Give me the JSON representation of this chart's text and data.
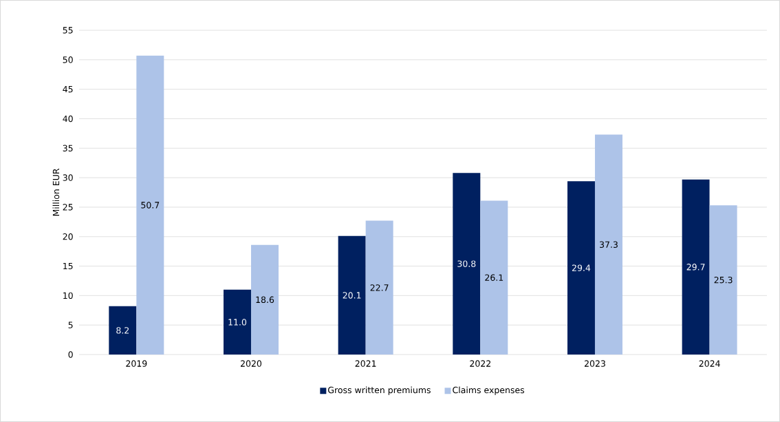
{
  "chart_data": {
    "type": "bar",
    "ylabel": "Million EUR",
    "categories": [
      "2019",
      "2020",
      "2021",
      "2022",
      "2023",
      "2024"
    ],
    "series": [
      {
        "name": "Gross written premiums",
        "color": "#002060",
        "values": [
          8.2,
          11.0,
          20.1,
          30.8,
          29.4,
          29.7
        ],
        "value_labels": [
          "8.2",
          "11.0",
          "20.1",
          "30.8",
          "29.4",
          "29.7"
        ]
      },
      {
        "name": "Claims expenses",
        "color": "#adc3e8",
        "values": [
          50.7,
          18.6,
          22.7,
          26.1,
          37.3,
          25.3
        ],
        "value_labels": [
          "50.7",
          "18.6",
          "22.7",
          "26.1",
          "37.3",
          "25.3"
        ]
      }
    ],
    "ylim": [
      0,
      55
    ],
    "yticks": [
      0,
      5,
      10,
      15,
      20,
      25,
      30,
      35,
      40,
      45,
      50,
      55
    ],
    "grid": "y",
    "legend": "bottom"
  }
}
